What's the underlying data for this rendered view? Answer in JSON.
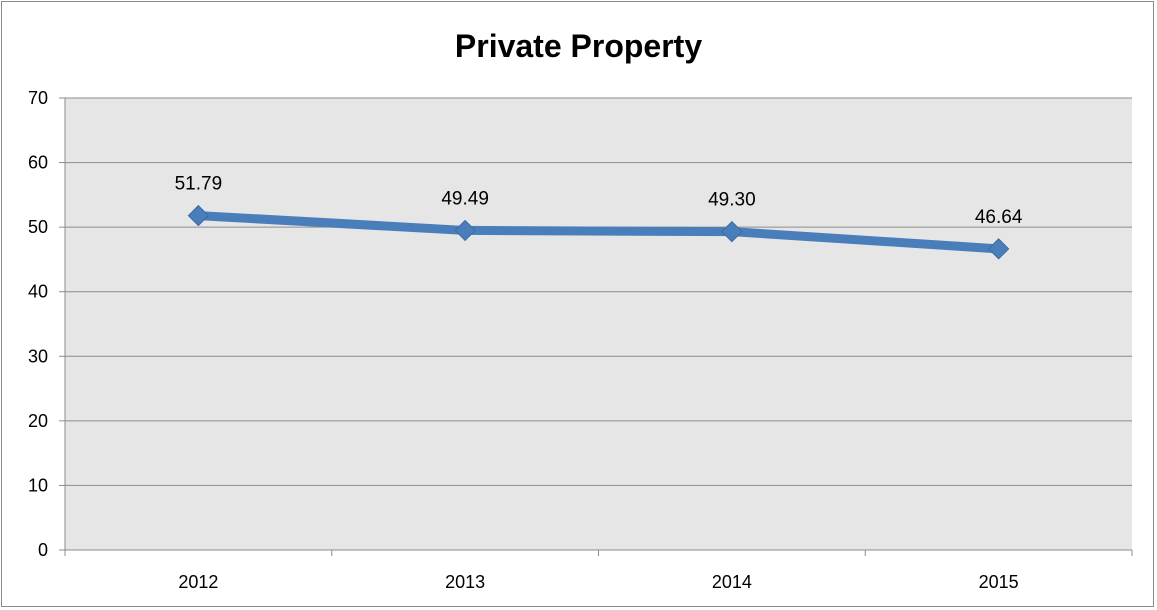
{
  "chart_data": {
    "type": "line",
    "title": "Private Property",
    "xlabel": "",
    "ylabel": "",
    "categories": [
      "2012",
      "2013",
      "2014",
      "2015"
    ],
    "series": [
      {
        "values": [
          51.79,
          49.49,
          49.3,
          46.64
        ],
        "data_labels": [
          "51.79",
          "49.49",
          "49.30",
          "46.64"
        ],
        "color": "#4a7ebb",
        "marker": "diamond"
      }
    ],
    "ylim": [
      0,
      70
    ],
    "y_ticks": [
      0,
      10,
      20,
      30,
      40,
      50,
      60,
      70
    ],
    "y_tick_labels": [
      "0",
      "10",
      "20",
      "30",
      "40",
      "50",
      "60",
      "70"
    ],
    "grid": true,
    "legend": "none",
    "plot_background": "#e6e6e6",
    "gridline_color": "#8c8c8c"
  }
}
